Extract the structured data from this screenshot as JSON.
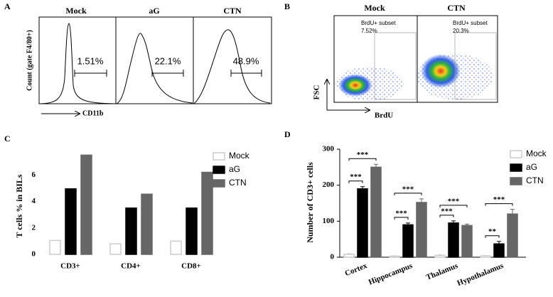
{
  "panel_a": {
    "label": "A",
    "y_label": "Count (gate F4/80+)",
    "x_label": "CD11b",
    "plots": [
      {
        "title": "Mock",
        "percent": "1.51%"
      },
      {
        "title": "aG",
        "percent": "22.1%"
      },
      {
        "title": "CTN",
        "percent": "48.9%"
      }
    ]
  },
  "panel_b": {
    "label": "B",
    "y_label": "FSC",
    "x_label": "BrdU",
    "plots": [
      {
        "title": "Mock",
        "gate_label": "BrdU+ subset",
        "percent": "7.52%"
      },
      {
        "title": "CTN",
        "gate_label": "BrdU+ subset",
        "percent": "20.3%"
      }
    ]
  },
  "chart_data": [
    {
      "type": "bar",
      "label": "C",
      "y_label": "T cells % in BILs",
      "categories": [
        "CD3+",
        "CD4+",
        "CD8+"
      ],
      "series": [
        {
          "name": "Mock",
          "color": "#ffffff",
          "values": [
            1.05,
            0.8,
            1.0
          ]
        },
        {
          "name": "aG",
          "color": "#000000",
          "values": [
            4.95,
            3.5,
            3.5
          ]
        },
        {
          "name": "CTN",
          "color": "#666666",
          "values": [
            7.5,
            4.55,
            6.2
          ]
        }
      ],
      "ylim": [
        0,
        8
      ],
      "yticks": [
        0,
        2,
        4,
        6
      ],
      "legend": "right"
    },
    {
      "type": "bar",
      "label": "D",
      "y_label": "Number of CD3+ cells",
      "categories": [
        "Cortex",
        "Hippocampus",
        "Thalamus",
        "Hypothalamus"
      ],
      "series": [
        {
          "name": "Mock",
          "color": "#ffffff",
          "values": [
            8,
            3,
            5,
            4
          ],
          "errors": [
            2,
            1,
            2,
            1
          ]
        },
        {
          "name": "aG",
          "color": "#000000",
          "values": [
            190,
            90,
            95,
            37
          ],
          "errors": [
            6,
            5,
            6,
            7
          ]
        },
        {
          "name": "CTN",
          "color": "#666666",
          "values": [
            250,
            152,
            88,
            120
          ],
          "errors": [
            8,
            10,
            4,
            13
          ]
        }
      ],
      "significance": [
        [
          "***",
          "***"
        ],
        [
          "***",
          "***"
        ],
        [
          "***",
          "***"
        ],
        [
          "**",
          "***"
        ]
      ],
      "ylim": [
        0,
        300
      ],
      "yticks": [
        0,
        100,
        200,
        300
      ],
      "legend": "right"
    }
  ]
}
